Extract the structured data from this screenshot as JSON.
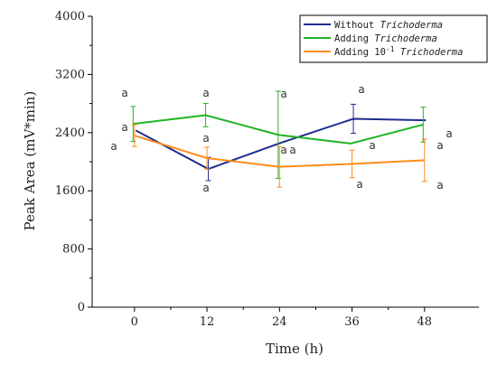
{
  "chart_data": {
    "type": "line",
    "xlabel": "Time (h)",
    "ylabel": "Peak Area (mV*min)",
    "x": [
      0,
      12,
      24,
      36,
      48
    ],
    "xlim": [
      -7,
      57
    ],
    "ylim": [
      0,
      4000
    ],
    "yticks": [
      0,
      800,
      1600,
      2400,
      3200,
      4000
    ],
    "grid": false,
    "legend_position": "top-right",
    "series": [
      {
        "name_prefix": "Without",
        "name_italic": "Trichoderma",
        "color": "#1f2c8f",
        "values": [
          2430,
          1900,
          2260,
          2590,
          2570
        ],
        "error": [
          0,
          160,
          0,
          200,
          0
        ],
        "sig": [
          "a",
          "a",
          "a",
          "a",
          "a"
        ]
      },
      {
        "name_prefix": "Adding",
        "name_italic": "Trichoderma",
        "color": "#22b422",
        "values": [
          2520,
          2640,
          2370,
          2250,
          2510
        ],
        "error": [
          240,
          160,
          600,
          0,
          240
        ],
        "sig": [
          "a",
          "a",
          "a",
          "a",
          "a"
        ]
      },
      {
        "name_prefix": "Adding 10",
        "name_sup": "-1",
        "name_italic": "Trichoderma",
        "color": "#ff8c1a",
        "values": [
          2360,
          2050,
          1930,
          1970,
          2020
        ],
        "error": [
          150,
          150,
          280,
          190,
          290
        ],
        "sig": [
          "a",
          "a",
          "a",
          "a",
          "a"
        ]
      }
    ]
  }
}
